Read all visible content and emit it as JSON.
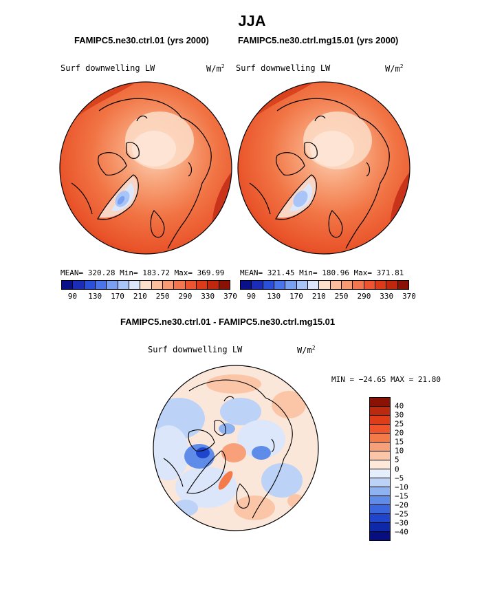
{
  "season_title": "JJA",
  "panel_left": {
    "case": "FAMIPC5.ne30.ctrl.01 (yrs 2000)",
    "variable": "Surf downwelling LW",
    "units_base": "W/m",
    "units_exp": "2",
    "stats": "MEAN= 320.28   Min= 183.72   Max= 369.99"
  },
  "panel_right": {
    "case": "FAMIPC5.ne30.ctrl.mg15.01 (yrs 2000)",
    "variable": "Surf downwelling LW",
    "units_base": "W/m",
    "units_exp": "2",
    "stats": "MEAN= 321.45   Min= 180.96   Max= 371.81"
  },
  "top_colorbar": {
    "colors": [
      "#0a0f8a",
      "#1a2cb8",
      "#2a4fd8",
      "#4a74ea",
      "#7aa0f2",
      "#a9c5f7",
      "#dbe6fb",
      "#fde0cc",
      "#fbbd9b",
      "#f89a72",
      "#f4764e",
      "#ee5430",
      "#dd3a1a",
      "#c0280e",
      "#8a1204"
    ],
    "ticks": [
      "90",
      "130",
      "170",
      "210",
      "250",
      "290",
      "330",
      "370"
    ]
  },
  "diff_panel": {
    "title": "FAMIPC5.ne30.ctrl.01 - FAMIPC5.ne30.ctrl.mg15.01",
    "variable": "Surf downwelling LW",
    "units_base": "W/m",
    "units_exp": "2",
    "minmax": "MIN = −24.65 MAX =   21.80"
  },
  "diff_colorbar": {
    "colors": [
      "#8a1204",
      "#bb2a0e",
      "#de3d18",
      "#f05428",
      "#f47a4a",
      "#f8a07a",
      "#fbc6a8",
      "#fde8da",
      "#e6effb",
      "#bcd2f6",
      "#8fb2f0",
      "#5f8ce8",
      "#3a66de",
      "#1f45cc",
      "#0e28aa",
      "#070f80"
    ],
    "ticks": [
      "40",
      "30",
      "25",
      "20",
      "15",
      "10",
      "5",
      "0",
      "−5",
      "−10",
      "−15",
      "−20",
      "−25",
      "−30",
      "−40"
    ]
  }
}
